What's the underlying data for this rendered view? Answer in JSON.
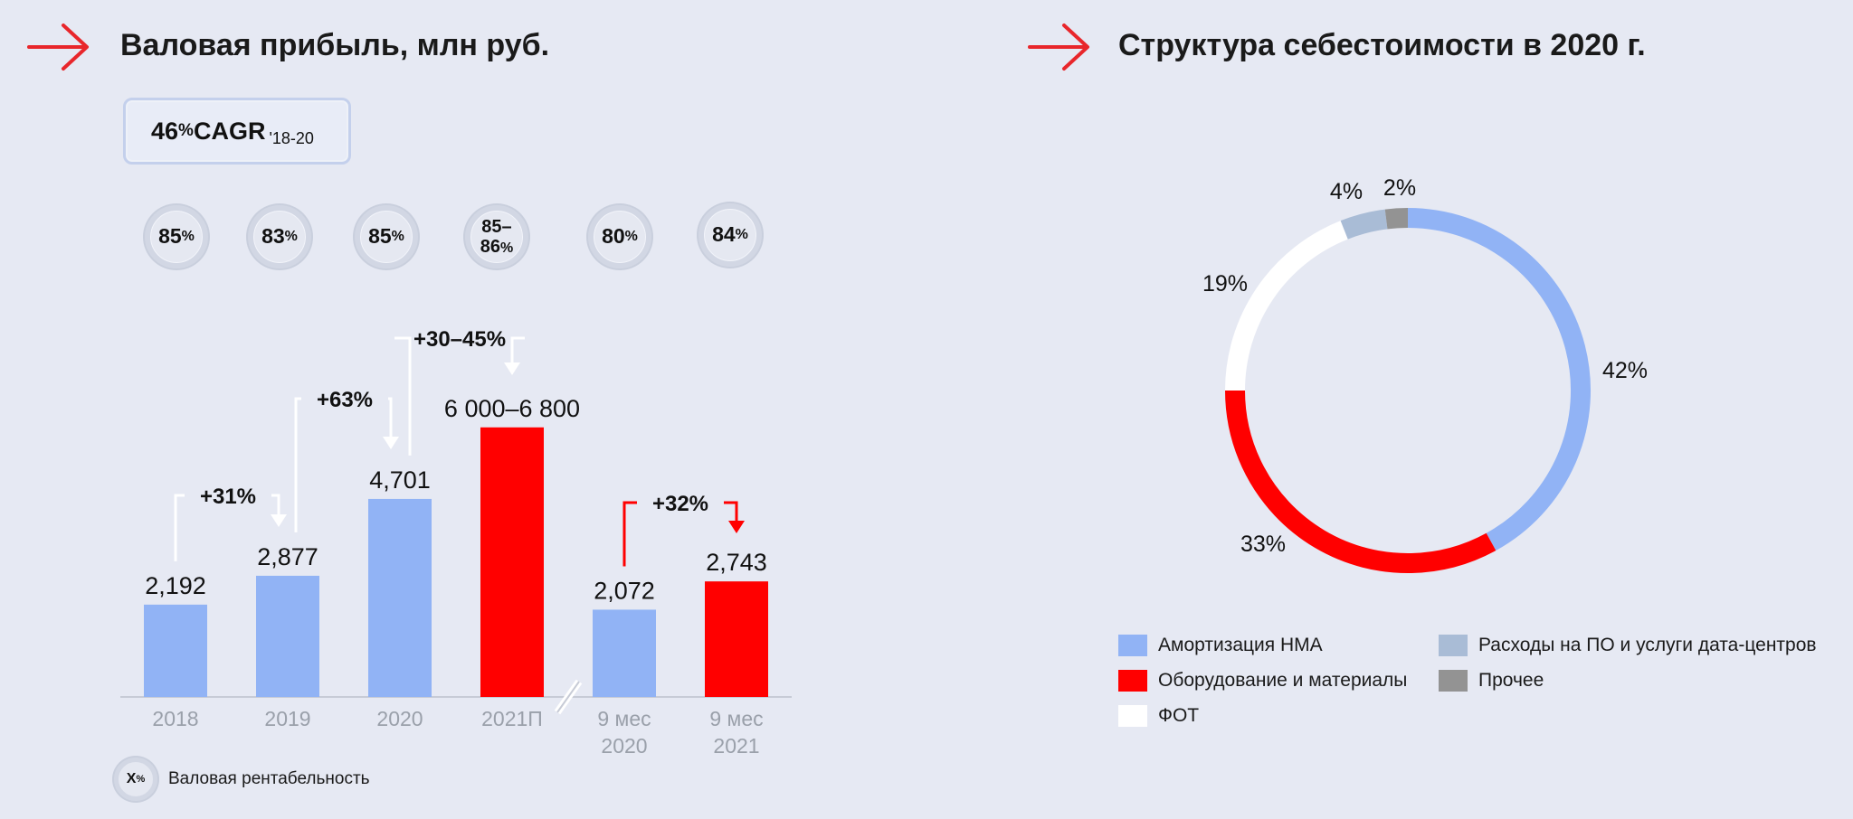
{
  "left_section": {
    "title": "Валовая прибыль, млн руб.",
    "cagr": {
      "value": "46",
      "pct": "%",
      "label": " CAGR",
      "period": "'18-20"
    },
    "margins": [
      {
        "main": "85",
        "pct": "%"
      },
      {
        "main": "83",
        "pct": "%"
      },
      {
        "main": "85",
        "pct": "%"
      },
      {
        "main": "85–",
        "line2": "86",
        "pct": "%"
      },
      {
        "main": "80",
        "pct": "%"
      },
      {
        "main": "84",
        "pct": "%"
      }
    ],
    "footnote": {
      "symbol": "X",
      "pct": "%",
      "text": "Валовая рентабельность"
    }
  },
  "right_section": {
    "title": "Структура себестоимости в 2020 г."
  },
  "colors": {
    "blue": "#91b3f5",
    "red": "#ff0000",
    "white": "#ffffff",
    "grayblue": "#a9bcd6",
    "gray": "#939393",
    "accent_red": "#e8262b",
    "axis": "#9aa0aa"
  },
  "chart_data": [
    {
      "type": "bar",
      "title": "Валовая прибыль, млн руб.",
      "categories": [
        "2018",
        "2019",
        "2020",
        "2021П",
        "9 мес 2020",
        "9 мес 2021"
      ],
      "values": [
        2192,
        2877,
        4701,
        6400,
        2072,
        2743
      ],
      "value_labels": [
        "2,192",
        "2,877",
        "4,701",
        "6 000–6 800",
        "2,072",
        "2,743"
      ],
      "bar_colors": [
        "blue",
        "blue",
        "blue",
        "red",
        "blue",
        "red"
      ],
      "growth_annotations": [
        {
          "from": 0,
          "to": 1,
          "text": "+31%"
        },
        {
          "from": 1,
          "to": 2,
          "text": "+63%"
        },
        {
          "from": 2,
          "to": 3,
          "text": "+30–45%"
        },
        {
          "from": 4,
          "to": 5,
          "text": "+32%"
        }
      ],
      "axis_break": "between 2021П and 9 мес 2020"
    },
    {
      "type": "pie",
      "title": "Структура себестоимости в 2020 г.",
      "style": "donut",
      "slices": [
        {
          "label": "Амортизация НМА",
          "value": 42,
          "display": "42%",
          "color": "#91b3f5"
        },
        {
          "label": "Оборудование и материалы",
          "value": 33,
          "display": "33%",
          "color": "#ff0000"
        },
        {
          "label": "ФОТ",
          "value": 19,
          "display": "19%",
          "color": "#ffffff"
        },
        {
          "label": "Расходы на ПО и услуги дата-центров",
          "value": 4,
          "display": "4%",
          "color": "#a9bcd6"
        },
        {
          "label": "Прочее",
          "value": 2,
          "display": "2%",
          "color": "#939393"
        }
      ],
      "legend_placement": "bottom"
    }
  ]
}
